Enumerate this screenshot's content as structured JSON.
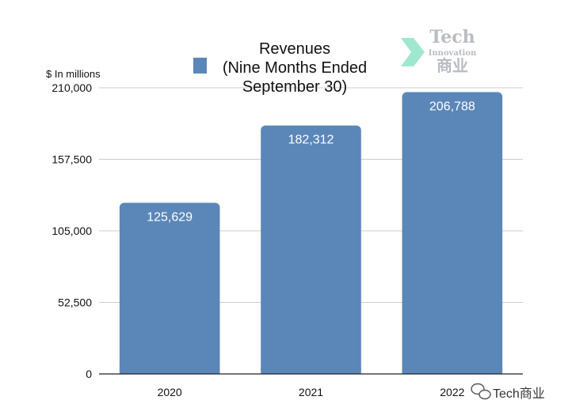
{
  "chart_data": {
    "type": "bar",
    "categories": [
      "2020",
      "2021",
      "2022"
    ],
    "series": [
      {
        "name": "Revenues (Nine Months Ended September 30)",
        "values": [
          125629,
          182312,
          206788
        ]
      }
    ],
    "value_labels": [
      "125,629",
      "182,312",
      "206,788"
    ],
    "legend_lines": [
      "Revenues",
      "(Nine Months Ended",
      "September 30)"
    ],
    "legend_position": "top-center",
    "ylabel": "$ In millions",
    "ylim": [
      0,
      210000
    ],
    "yticks": [
      0,
      52500,
      105000,
      157500,
      210000
    ],
    "ytick_labels": [
      "0",
      "52,500",
      "105,000",
      "157,500",
      "210,000"
    ],
    "grid": true,
    "colors": {
      "bar": "#5b87b8",
      "grid": "#cccccc",
      "axis": "#222222"
    }
  },
  "watermark": {
    "line1": "Tech",
    "line2": "Innovation",
    "line3": "商业",
    "icon": "chevron-arrow-icon",
    "color": "#8fe3c8"
  },
  "footer": {
    "icon": "wechat-icon",
    "text": "Tech商业"
  }
}
